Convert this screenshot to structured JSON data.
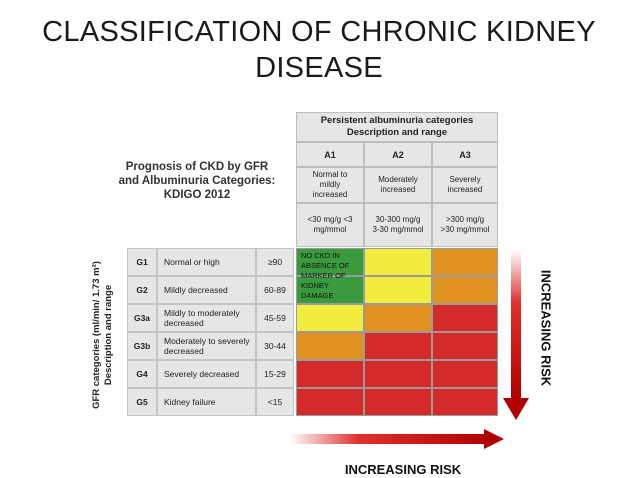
{
  "title_lines": [
    "CLASSIFICATION OF CHRONIC KIDNEY",
    "DISEASE"
  ],
  "prognosis_lines": [
    "Prognosis of CKD by GFR",
    "and Albuminuria Categories:",
    "KDIGO 2012"
  ],
  "albuminuria_header": [
    "Persistent albuminuria categories",
    "Description and range"
  ],
  "albuminuria_columns": [
    {
      "code": "A1",
      "description": "Normal to mildly increased",
      "range": "<30 mg/g <3 mg/mmol"
    },
    {
      "code": "A2",
      "description": "Moderately increased",
      "range": "30-300 mg/g 3-30 mg/mmol"
    },
    {
      "code": "A3",
      "description": "Severely increased",
      "range": ">300 mg/g >30 mg/mmol"
    }
  ],
  "gfr_axis_label": [
    "GFR categories (ml/min/ 1.73 m²)",
    "Description and range"
  ],
  "gfr_rows": [
    {
      "code": "G1",
      "description": "Normal or high",
      "range": "≥90",
      "colors": [
        "green",
        "yellow",
        "orange"
      ]
    },
    {
      "code": "G2",
      "description": "Mildly decreased",
      "range": "60-89",
      "colors": [
        "green",
        "yellow",
        "orange"
      ]
    },
    {
      "code": "G3a",
      "description": "Mildly to moderately decreased",
      "range": "45-59",
      "colors": [
        "yellow",
        "orange",
        "red"
      ]
    },
    {
      "code": "G3b",
      "description": "Moderately to severely decreased",
      "range": "30-44",
      "colors": [
        "orange",
        "red",
        "red"
      ]
    },
    {
      "code": "G4",
      "description": "Severely decreased",
      "range": "15-29",
      "colors": [
        "red",
        "red",
        "red"
      ]
    },
    {
      "code": "G5",
      "description": "Kidney failure",
      "range": "<15",
      "colors": [
        "red",
        "red",
        "red"
      ]
    }
  ],
  "note_lines": [
    "NO CKD IN",
    "ABSENCE OF",
    "MARKER OF",
    "KIDNEY",
    "DAMAGE"
  ],
  "risk_vertical": "INCREASING RISK",
  "risk_horizontal": "INCREASING RISK",
  "colors": {
    "green": "#3a9a3e",
    "yellow": "#f2ec3e",
    "orange": "#e0911f",
    "red": "#d42a2a",
    "arrow": "#c00000"
  }
}
